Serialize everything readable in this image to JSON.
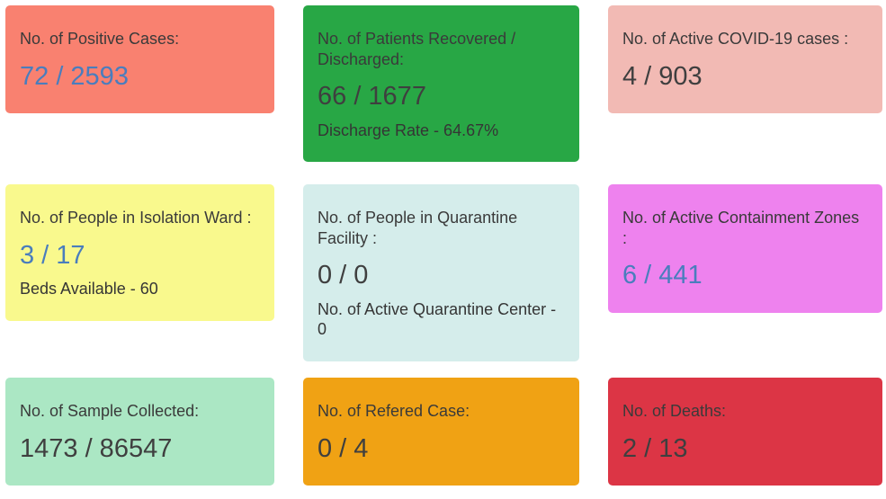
{
  "colors": {
    "value_blue": "#4a7dbd",
    "value_dark": "#3f3f3f",
    "title_text": "#3a3a3a",
    "page_background": "#ffffff"
  },
  "cards": [
    {
      "title": "No. of Positive Cases:",
      "value": "72 / 2593",
      "bg": "#f98170",
      "value_color": "value_blue"
    },
    {
      "title": "No. of Patients Recovered / Discharged:",
      "value": "66 / 1677",
      "subtitle": "Discharge Rate - 64.67%",
      "bg": "#28a745",
      "value_color": "value_dark"
    },
    {
      "title": "No. of Active COVID-19 cases :",
      "value": "4 / 903",
      "bg": "#f2bab4",
      "value_color": "value_dark"
    },
    {
      "title": "No. of People in Isolation Ward :",
      "value": "3 / 17",
      "subtitle": "Beds Available - 60",
      "bg": "#f9f98d",
      "value_color": "value_blue"
    },
    {
      "title": "No. of People in Quarantine Facility :",
      "value": "0 / 0",
      "subtitle": "No. of Active Quarantine Center - 0",
      "bg": "#d5edeb",
      "value_color": "value_dark"
    },
    {
      "title": "No. of Active Containment Zones :",
      "value": "6 / 441",
      "bg": "#ee82ee",
      "value_color": "value_blue"
    },
    {
      "title": "No. of Sample Collected:",
      "value": "1473 / 86547",
      "bg": "#abe7c4",
      "value_color": "value_dark"
    },
    {
      "title": "No. of Refered Case:",
      "value": "0 / 4",
      "bg": "#f0a214",
      "value_color": "value_dark"
    },
    {
      "title": "No. of Deaths:",
      "value": "2 / 13",
      "bg": "#dc3545",
      "value_color": "value_dark"
    }
  ]
}
